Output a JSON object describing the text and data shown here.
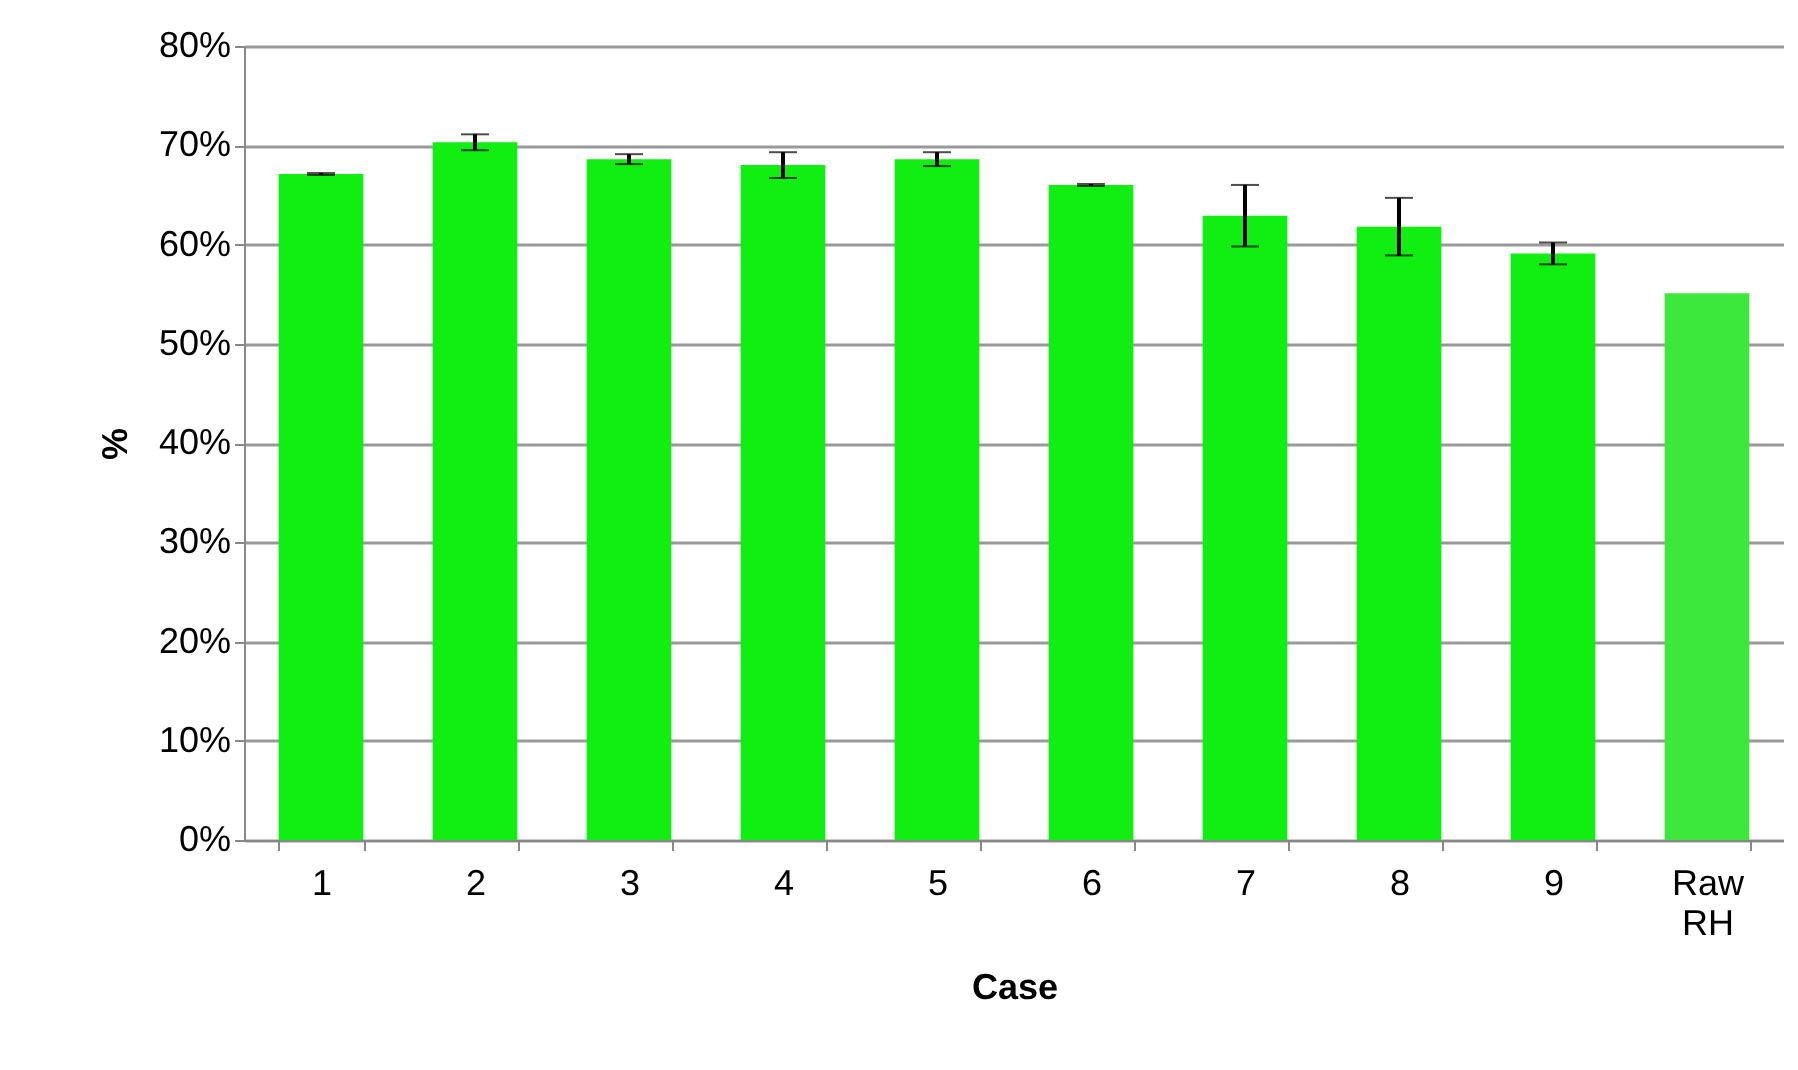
{
  "chart_data": {
    "type": "bar",
    "xlabel": "Case",
    "ylabel": "%",
    "categories": [
      "1",
      "2",
      "3",
      "4",
      "5",
      "6",
      "7",
      "8",
      "9",
      "Raw RH"
    ],
    "values": [
      67.1,
      70.3,
      68.6,
      68.0,
      68.6,
      66.0,
      62.9,
      61.8,
      59.1,
      55.1
    ],
    "errors": [
      0.1,
      0.8,
      0.5,
      1.3,
      0.7,
      0.1,
      3.1,
      2.9,
      1.1,
      null
    ],
    "colors": [
      "#11ee11",
      "#11ee11",
      "#11ee11",
      "#11ee11",
      "#11ee11",
      "#11ee11",
      "#11ee11",
      "#11ee11",
      "#11ee11",
      "#3de83d"
    ],
    "ylim": [
      0,
      80
    ],
    "yticks": [
      {
        "value": 0,
        "label": "0%"
      },
      {
        "value": 10,
        "label": "10%"
      },
      {
        "value": 20,
        "label": "20%"
      },
      {
        "value": 30,
        "label": "30%"
      },
      {
        "value": 40,
        "label": "40%"
      },
      {
        "value": 50,
        "label": "50%"
      },
      {
        "value": 60,
        "label": "60%"
      },
      {
        "value": 70,
        "label": "70%"
      },
      {
        "value": 80,
        "label": "80%"
      }
    ],
    "grid": "y"
  }
}
